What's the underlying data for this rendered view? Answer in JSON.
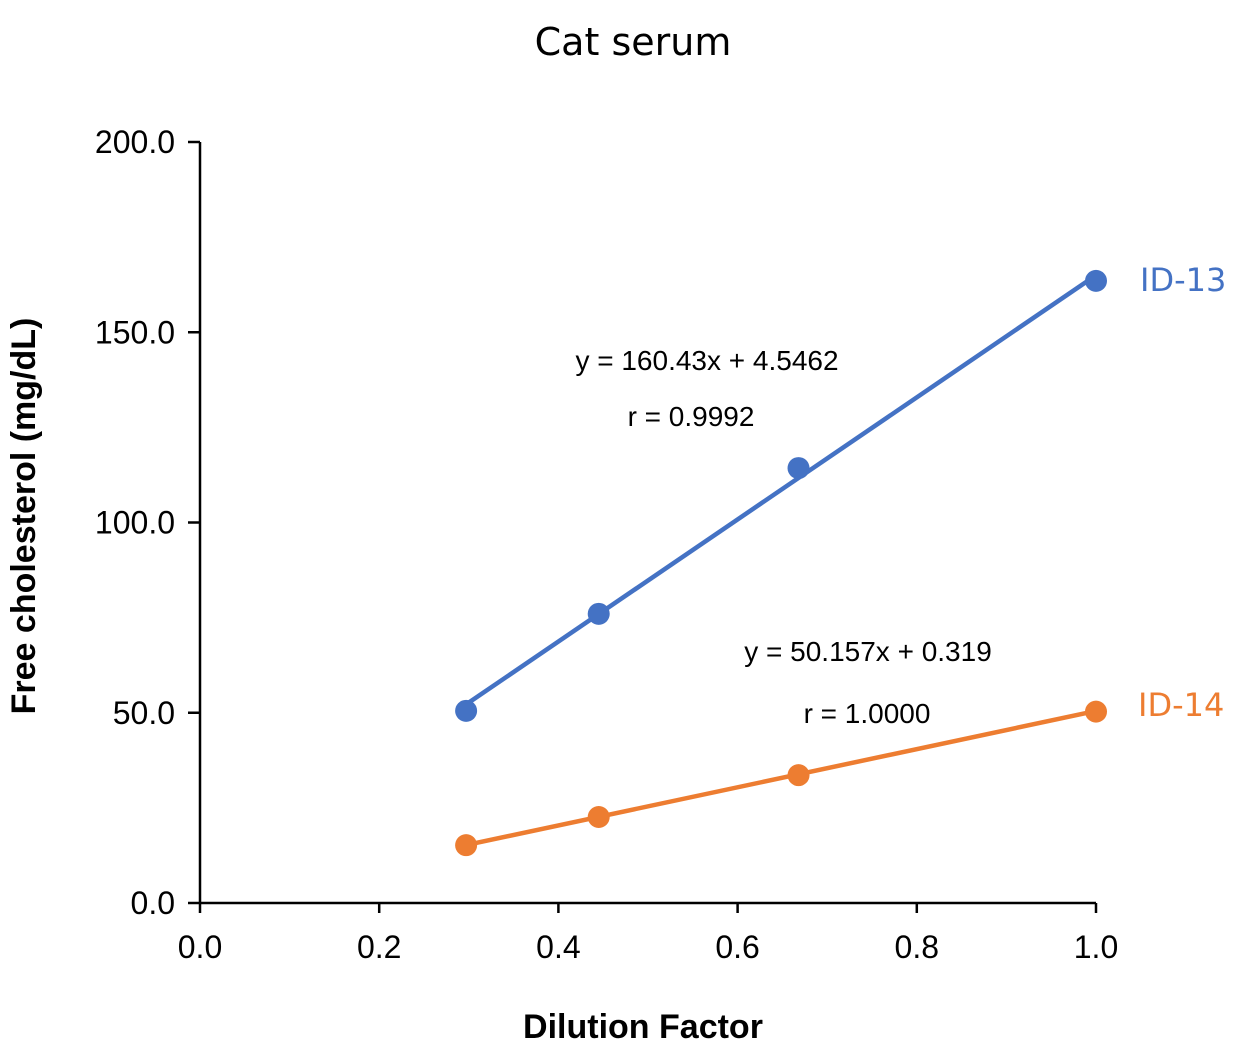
{
  "chart_data": {
    "type": "scatter",
    "title": "Cat serum",
    "xlabel": "Dilution Factor",
    "ylabel": "Free cholesterol (mg/dL)",
    "xlim": [
      0,
      1
    ],
    "ylim": [
      0,
      200
    ],
    "x_ticks": [
      "0.0",
      "0.2",
      "0.4",
      "0.6",
      "0.8",
      "1.0"
    ],
    "y_ticks": [
      "0.0",
      "50.0",
      "100.0",
      "150.0",
      "200.0"
    ],
    "grid": false,
    "legend": "none",
    "series": [
      {
        "name": "ID-13",
        "color": "#4472C4",
        "x": [
          0.297,
          0.445,
          0.668,
          1.0
        ],
        "y": [
          50.5,
          76.0,
          114.3,
          163.5
        ],
        "trendline": {
          "slope": 160.43,
          "intercept": 4.5462
        },
        "equation": "y = 160.43x + 4.5462",
        "r": "r = 0.9992"
      },
      {
        "name": "ID-14",
        "color": "#ED7D31",
        "x": [
          0.297,
          0.445,
          0.668,
          1.0
        ],
        "y": [
          15.2,
          22.6,
          33.6,
          50.3
        ],
        "trendline": {
          "slope": 50.157,
          "intercept": 0.319
        },
        "equation": "y = 50.157x + 0.319",
        "r": "r = 1.0000"
      }
    ]
  }
}
